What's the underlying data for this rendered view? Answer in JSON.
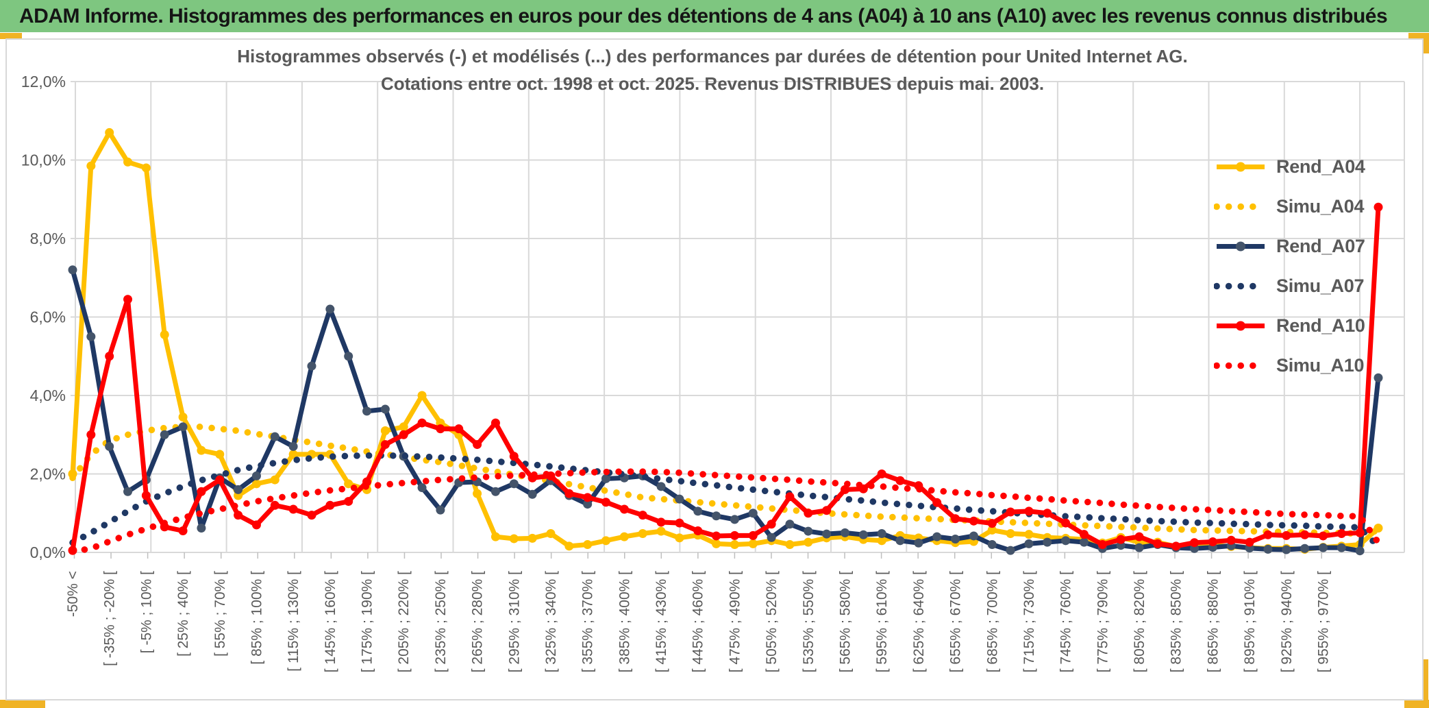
{
  "banner": {
    "title": "ADAM Informe. Histogrammes des performances en euros pour des détentions de 4 ans (A04) à 10 ans (A10) avec les revenus connus distribués"
  },
  "colors": {
    "banner_green": "#7EC680",
    "frame_gold": "#F0B325",
    "grid_gray": "#D9D9D9",
    "tick_gray": "#BFBFBF",
    "text_gray": "#595959",
    "gold_series": "#FFC000",
    "navy_series": "#1F3864",
    "navy_marker": "#44546A",
    "red_series": "#FF0000"
  },
  "chart_data": {
    "type": "line",
    "title_line1": "Histogrammes observés (-) et modélisés (...) des performances par durées de détention pour United Internet AG.",
    "title_line2": "Cotations entre oct. 1998 et oct. 2025. Revenus DISTRIBUES depuis mai. 2003.",
    "ylabel": "",
    "xlabel": "",
    "ylim": [
      0,
      12
    ],
    "grid": true,
    "legend_position": "right-top",
    "y_tick_labels": [
      "0,0%",
      "2,0%",
      "4,0%",
      "6,0%",
      "8,0%",
      "10,0%",
      "12,0%"
    ],
    "x_labels": [
      "-50% <",
      "[ -35% ; -20% [",
      "[ -5% ; 10% [",
      "[ 25% ; 40% [",
      "[ 55% ; 70% [",
      "[ 85% ; 100% [",
      "[ 115% ; 130% [",
      "[ 145% ; 160% [",
      "[ 175% ; 190% [",
      "[ 205% ; 220% [",
      "[ 235% ; 250% [",
      "[ 265% ; 280% [",
      "[ 295% ; 310% [",
      "[ 325% ; 340% [",
      "[ 355% ; 370% [",
      "[ 385% ; 400% [",
      "[ 415% ; 430% [",
      "[ 445% ; 460% [",
      "[ 475% ; 490% [",
      "[ 505% ; 520% [",
      "[ 535% ; 550% [",
      "[ 565% ; 580% [",
      "[ 595% ; 610% [",
      "[ 625% ; 640% [",
      "[ 655% ; 670% [",
      "[ 685% ; 700% [",
      "[ 715% ; 730% [",
      "[ 745% ; 760% [",
      "[ 775% ; 790% [",
      "[ 805% ; 820% [",
      "[ 835% ; 850% [",
      "[ 865% ; 880% [",
      "[ 895% ; 910% [",
      "[ 925% ; 940% [",
      "[ 955% ; 970% ["
    ],
    "label_every_n_categories": 2,
    "n_categories": 72,
    "series": [
      {
        "name": "Rend_A04",
        "style": "solid",
        "color": "#FFC000",
        "marker_color": "#FFC000",
        "values": [
          2.0,
          9.85,
          10.7,
          9.95,
          9.8,
          5.55,
          3.45,
          2.6,
          2.5,
          1.45,
          1.75,
          1.85,
          2.5,
          2.5,
          2.5,
          1.75,
          1.6,
          3.1,
          3.2,
          4.0,
          3.3,
          3.0,
          1.5,
          0.4,
          0.35,
          0.36,
          0.48,
          0.16,
          0.2,
          0.3,
          0.4,
          0.48,
          0.54,
          0.37,
          0.44,
          0.22,
          0.2,
          0.22,
          0.3,
          0.2,
          0.26,
          0.37,
          0.4,
          0.33,
          0.3,
          0.43,
          0.37,
          0.3,
          0.25,
          0.28,
          0.57,
          0.48,
          0.46,
          0.38,
          0.36,
          0.33,
          0.24,
          0.38,
          0.26,
          0.26,
          0.15,
          0.2,
          0.18,
          0.15,
          0.12,
          0.1,
          0.1,
          0.08,
          0.13,
          0.16,
          0.2,
          0.62
        ]
      },
      {
        "name": "Simu_A04",
        "style": "dotted",
        "color": "#FFC000",
        "values": [
          1.9,
          2.5,
          2.85,
          3.0,
          3.1,
          3.17,
          3.2,
          3.2,
          3.15,
          3.1,
          3.02,
          2.95,
          2.87,
          2.8,
          2.72,
          2.65,
          2.57,
          2.5,
          2.43,
          2.36,
          2.3,
          2.22,
          2.14,
          2.06,
          1.98,
          1.9,
          1.82,
          1.74,
          1.66,
          1.57,
          1.49,
          1.4,
          1.36,
          1.32,
          1.28,
          1.24,
          1.2,
          1.16,
          1.12,
          1.08,
          1.04,
          1.0,
          0.97,
          0.94,
          0.91,
          0.89,
          0.87,
          0.85,
          0.83,
          0.81,
          0.79,
          0.77,
          0.75,
          0.73,
          0.71,
          0.69,
          0.67,
          0.65,
          0.63,
          0.61,
          0.59,
          0.57,
          0.56,
          0.55,
          0.54,
          0.53,
          0.52,
          0.51,
          0.5,
          0.49,
          0.48,
          0.55
        ]
      },
      {
        "name": "Rend_A07",
        "style": "solid",
        "color": "#1F3864",
        "marker_color": "#44546A",
        "values": [
          7.2,
          5.5,
          2.7,
          1.55,
          1.85,
          3.0,
          3.2,
          0.62,
          1.9,
          1.6,
          1.95,
          2.95,
          2.7,
          4.75,
          6.2,
          5.0,
          3.6,
          3.65,
          2.45,
          1.65,
          1.08,
          1.78,
          1.8,
          1.55,
          1.75,
          1.48,
          1.83,
          1.45,
          1.23,
          1.88,
          1.9,
          1.95,
          1.68,
          1.36,
          1.05,
          0.93,
          0.84,
          1.0,
          0.38,
          0.72,
          0.54,
          0.47,
          0.5,
          0.45,
          0.48,
          0.3,
          0.24,
          0.4,
          0.34,
          0.42,
          0.2,
          0.05,
          0.22,
          0.26,
          0.3,
          0.26,
          0.1,
          0.18,
          0.12,
          0.2,
          0.12,
          0.1,
          0.13,
          0.17,
          0.11,
          0.08,
          0.07,
          0.1,
          0.12,
          0.12,
          0.04,
          4.45
        ]
      },
      {
        "name": "Simu_A07",
        "style": "dotted",
        "color": "#1F3864",
        "values": [
          0.25,
          0.5,
          0.77,
          1.05,
          1.3,
          1.5,
          1.68,
          1.84,
          1.97,
          2.1,
          2.2,
          2.28,
          2.35,
          2.4,
          2.44,
          2.46,
          2.47,
          2.47,
          2.46,
          2.44,
          2.42,
          2.39,
          2.36,
          2.32,
          2.28,
          2.24,
          2.19,
          2.14,
          2.09,
          2.04,
          1.99,
          1.93,
          1.87,
          1.82,
          1.76,
          1.71,
          1.65,
          1.6,
          1.55,
          1.5,
          1.45,
          1.41,
          1.36,
          1.32,
          1.27,
          1.23,
          1.19,
          1.15,
          1.12,
          1.08,
          1.05,
          1.01,
          0.98,
          0.95,
          0.92,
          0.9,
          0.87,
          0.85,
          0.82,
          0.8,
          0.78,
          0.76,
          0.75,
          0.73,
          0.72,
          0.7,
          0.69,
          0.68,
          0.66,
          0.65,
          0.64,
          0.15
        ]
      },
      {
        "name": "Rend_A10",
        "style": "solid",
        "color": "#FF0000",
        "marker_color": "#FF0000",
        "values": [
          0.05,
          3.0,
          5.0,
          6.45,
          1.45,
          0.65,
          0.55,
          1.55,
          1.85,
          0.95,
          0.7,
          1.2,
          1.1,
          0.95,
          1.2,
          1.3,
          1.8,
          2.75,
          3.0,
          3.3,
          3.15,
          3.15,
          2.75,
          3.3,
          2.45,
          1.9,
          1.95,
          1.5,
          1.4,
          1.28,
          1.1,
          0.95,
          0.77,
          0.75,
          0.55,
          0.42,
          0.43,
          0.43,
          0.72,
          1.42,
          1.0,
          1.07,
          1.6,
          1.62,
          2.0,
          1.83,
          1.7,
          1.27,
          0.86,
          0.8,
          0.74,
          1.03,
          1.05,
          1.0,
          0.75,
          0.46,
          0.2,
          0.33,
          0.4,
          0.22,
          0.16,
          0.25,
          0.27,
          0.31,
          0.26,
          0.45,
          0.43,
          0.45,
          0.42,
          0.48,
          0.5,
          8.8
        ]
      },
      {
        "name": "Simu_A10",
        "style": "dotted",
        "color": "#FF0000",
        "values": [
          0.02,
          0.1,
          0.28,
          0.45,
          0.6,
          0.75,
          0.88,
          1.0,
          1.1,
          1.2,
          1.3,
          1.38,
          1.45,
          1.52,
          1.58,
          1.63,
          1.68,
          1.73,
          1.77,
          1.81,
          1.85,
          1.88,
          1.91,
          1.94,
          1.96,
          1.98,
          2.0,
          2.02,
          2.04,
          2.05,
          2.06,
          2.06,
          2.05,
          2.03,
          2.0,
          1.97,
          1.94,
          1.91,
          1.88,
          1.85,
          1.81,
          1.78,
          1.75,
          1.71,
          1.68,
          1.64,
          1.61,
          1.57,
          1.53,
          1.5,
          1.46,
          1.43,
          1.39,
          1.36,
          1.32,
          1.29,
          1.26,
          1.22,
          1.19,
          1.16,
          1.13,
          1.1,
          1.08,
          1.05,
          1.03,
          1.0,
          0.98,
          0.96,
          0.95,
          0.93,
          0.92,
          0.25
        ]
      }
    ]
  }
}
